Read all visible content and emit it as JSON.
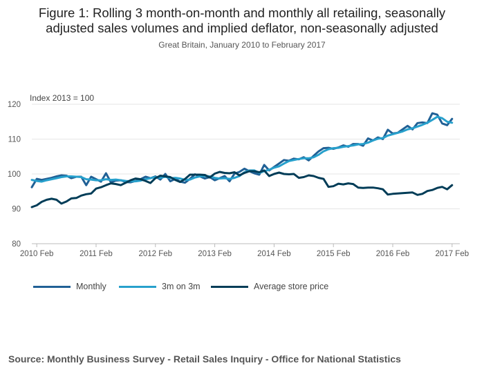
{
  "header": {
    "title_line1": "Figure 1: Rolling 3 month-on-month and monthly all retailing, seasonally",
    "title_line2": "adjusted sales volumes and implied deflator, non-seasonally adjusted",
    "subtitle": "Great Britain, January 2010 to February 2017"
  },
  "source": "Source: Monthly Business Survey - Retail Sales Inquiry - Office for National Statistics",
  "colors": {
    "monthly": "#206095",
    "three_month": "#27a0cc",
    "store_price": "#003c57",
    "grid": "#e6e6e6",
    "axis": "#bbbbbb"
  },
  "chart_data": {
    "type": "line",
    "title": "Figure 1: Rolling 3 month-on-month and monthly all retailing, seasonally adjusted sales volumes and implied deflator, non-seasonally adjusted",
    "ylabel": "Index 2013 = 100",
    "ylim": [
      80,
      120
    ],
    "yticks": [
      80,
      90,
      100,
      110,
      120
    ],
    "xlim": [
      0,
      86
    ],
    "xticks": [
      {
        "x": 1,
        "label": "2010 Feb"
      },
      {
        "x": 13,
        "label": "2011 Feb"
      },
      {
        "x": 25,
        "label": "2012 Feb"
      },
      {
        "x": 37,
        "label": "2013 Feb"
      },
      {
        "x": 49,
        "label": "2014 Feb"
      },
      {
        "x": 61,
        "label": "2015 Feb"
      },
      {
        "x": 73,
        "label": "2016 Feb"
      },
      {
        "x": 85,
        "label": "2017 Feb"
      }
    ],
    "legend": "bottom-left",
    "series": [
      {
        "name": "Monthly",
        "color": "#206095",
        "values": [
          96.2,
          98.6,
          98.3,
          98.6,
          98.9,
          99.3,
          99.6,
          99.5,
          98.8,
          99.2,
          99.2,
          96.8,
          99.2,
          98.5,
          97.8,
          100.2,
          97.6,
          98.1,
          98.2,
          97.7,
          97.6,
          98.0,
          98.5,
          99.2,
          98.8,
          99.3,
          98.4,
          100.0,
          97.9,
          98.6,
          97.8,
          97.5,
          98.6,
          99.9,
          99.3,
          98.7,
          99.1,
          98.2,
          98.8,
          99.4,
          97.9,
          100.1,
          100.6,
          101.5,
          100.8,
          100.2,
          99.8,
          102.6,
          101.0,
          102.0,
          103.0,
          104.0,
          103.8,
          104.4,
          104.2,
          104.8,
          103.9,
          105.2,
          106.5,
          107.4,
          107.5,
          107.2,
          107.6,
          108.2,
          107.8,
          108.6,
          108.6,
          108.1,
          110.2,
          109.6,
          110.5,
          110.0,
          112.7,
          111.6,
          111.8,
          112.8,
          113.8,
          112.8,
          114.6,
          114.8,
          114.6,
          117.4,
          117.0,
          114.5,
          114.0,
          115.8
        ]
      },
      {
        "name": "3m on 3m",
        "color": "#27a0cc",
        "values": [
          98.3,
          98.0,
          97.8,
          98.2,
          98.5,
          98.8,
          99.1,
          99.3,
          99.3,
          99.2,
          99.1,
          98.5,
          98.4,
          98.2,
          98.2,
          98.5,
          98.3,
          98.4,
          98.2,
          98.0,
          97.9,
          97.9,
          98.1,
          98.5,
          98.8,
          99.1,
          98.9,
          99.2,
          98.8,
          98.9,
          98.7,
          98.3,
          98.4,
          99.0,
          99.3,
          99.4,
          99.3,
          98.9,
          98.7,
          98.8,
          98.6,
          98.9,
          99.4,
          100.5,
          101.0,
          101.0,
          100.3,
          100.8,
          101.2,
          101.8,
          102.2,
          103.0,
          103.7,
          104.0,
          104.3,
          104.5,
          104.5,
          104.8,
          105.5,
          106.5,
          107.1,
          107.4,
          107.5,
          107.8,
          108.0,
          108.2,
          108.5,
          108.6,
          109.0,
          109.6,
          110.1,
          110.3,
          111.0,
          111.4,
          111.8,
          112.2,
          112.8,
          113.1,
          113.6,
          114.1,
          114.7,
          115.5,
          116.4,
          116.0,
          115.0,
          114.7
        ]
      },
      {
        "name": "Average store price",
        "color": "#003c57",
        "values": [
          90.5,
          91.0,
          92.0,
          92.6,
          92.9,
          92.6,
          91.5,
          92.1,
          93.0,
          93.1,
          93.8,
          94.2,
          94.4,
          95.8,
          96.2,
          96.8,
          97.3,
          97.1,
          96.8,
          97.5,
          98.2,
          98.7,
          98.5,
          98.0,
          97.4,
          98.8,
          99.5,
          99.3,
          99.1,
          98.3,
          97.7,
          98.6,
          99.8,
          99.8,
          99.8,
          99.7,
          99.0,
          100.1,
          100.6,
          100.3,
          100.2,
          100.5,
          99.6,
          100.3,
          100.8,
          100.8,
          100.5,
          101.0,
          99.4,
          100.0,
          100.4,
          100.0,
          99.9,
          100.0,
          98.9,
          99.1,
          99.6,
          99.4,
          98.9,
          98.6,
          96.3,
          96.5,
          97.2,
          97.0,
          97.3,
          97.1,
          96.1,
          96.0,
          96.1,
          96.1,
          95.9,
          95.6,
          94.1,
          94.3,
          94.4,
          94.5,
          94.6,
          94.7,
          94.0,
          94.3,
          95.1,
          95.4,
          96.0,
          96.3,
          95.6,
          96.8
        ]
      }
    ]
  },
  "legend": {
    "items": [
      {
        "label": "Monthly"
      },
      {
        "label": "3m on 3m"
      },
      {
        "label": "Average store price"
      }
    ]
  }
}
